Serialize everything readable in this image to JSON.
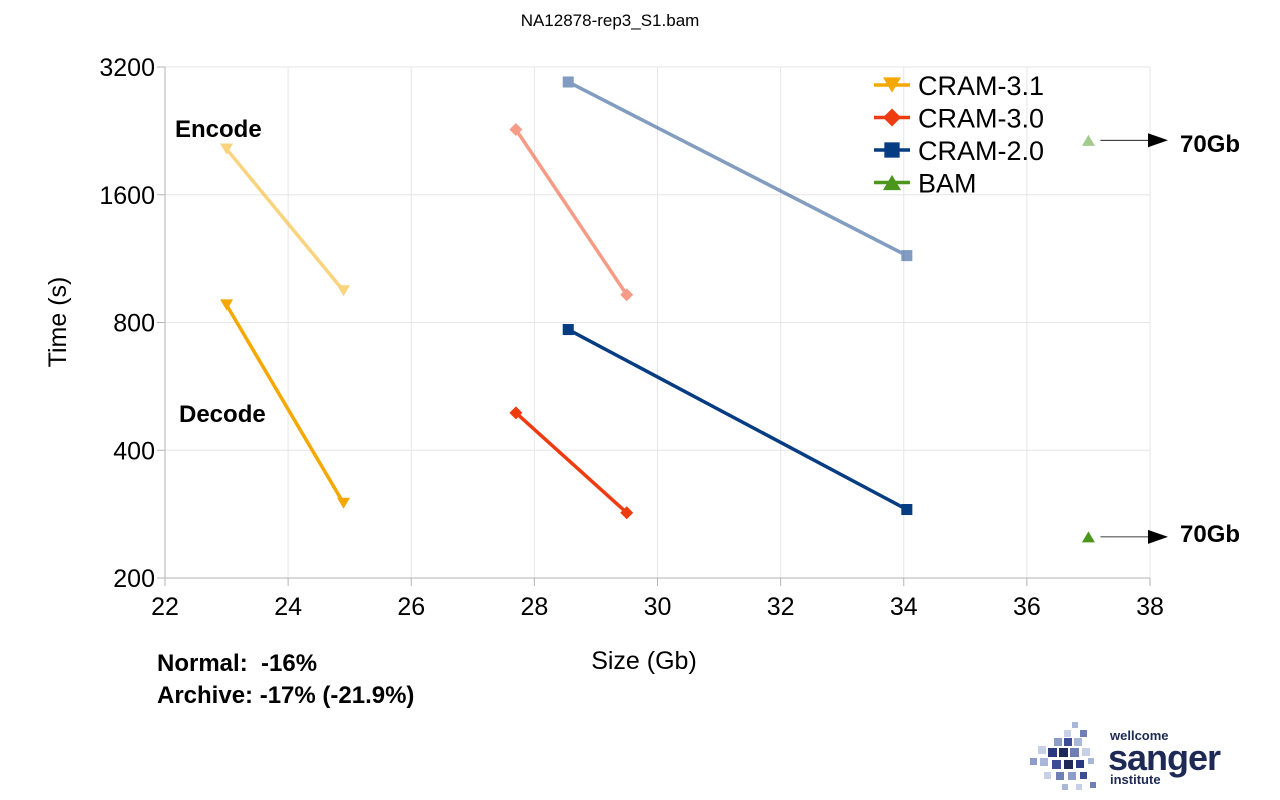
{
  "chart_data": {
    "type": "line",
    "title": "NA12878-rep3_S1.bam",
    "xlabel": "Size (Gb)",
    "ylabel": "Time (s)",
    "xlim": [
      22,
      38
    ],
    "ylim": [
      200,
      3200
    ],
    "yscale": "log2",
    "xticks": [
      "22",
      "24",
      "26",
      "28",
      "30",
      "32",
      "34",
      "36",
      "38"
    ],
    "yticks": [
      "200",
      "400",
      "800",
      "1600",
      "3200"
    ],
    "grid": true,
    "legend_position": "top-right",
    "legend": [
      "CRAM-3.1",
      "CRAM-3.0",
      "CRAM-2.0",
      "BAM"
    ],
    "series": [
      {
        "name": "CRAM-3.1",
        "color": "#f5a800",
        "marker": "triangle-down",
        "encode": [
          {
            "x": 23.0,
            "y": 2050
          },
          {
            "x": 24.9,
            "y": 950
          }
        ],
        "decode": [
          {
            "x": 23.0,
            "y": 880
          },
          {
            "x": 24.9,
            "y": 300
          }
        ]
      },
      {
        "name": "CRAM-3.0",
        "color": "#ee3c10",
        "marker": "diamond",
        "encode": [
          {
            "x": 27.7,
            "y": 2280
          },
          {
            "x": 29.5,
            "y": 930
          }
        ],
        "decode": [
          {
            "x": 27.7,
            "y": 490
          },
          {
            "x": 29.5,
            "y": 285
          }
        ]
      },
      {
        "name": "CRAM-2.0",
        "color": "#063c82",
        "marker": "square",
        "encode": [
          {
            "x": 28.55,
            "y": 2950
          },
          {
            "x": 34.05,
            "y": 1150
          }
        ],
        "decode": [
          {
            "x": 28.55,
            "y": 770
          },
          {
            "x": 34.05,
            "y": 290
          }
        ]
      },
      {
        "name": "BAM",
        "color": "#4c961e",
        "marker": "triangle-up",
        "encode": [
          {
            "x": 37.0,
            "y": 2150
          }
        ],
        "decode": [
          {
            "x": 37.0,
            "y": 250
          }
        ]
      }
    ],
    "annotations": {
      "encode_label": "Encode",
      "decode_label": "Decode",
      "bam_encode_size": "70Gb",
      "bam_decode_size": "70Gb",
      "summary_line1": "Normal:  -16%",
      "summary_line2": "Archive: -17% (-21.9%)"
    }
  },
  "logo": {
    "line1": "wellcome",
    "line2": "sanger",
    "line3": "institute"
  }
}
